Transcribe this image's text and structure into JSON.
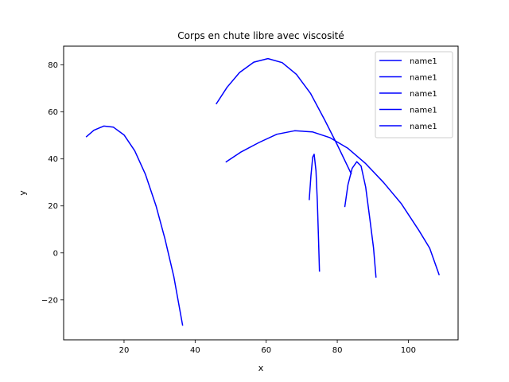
{
  "chart_data": {
    "type": "line",
    "title": "Corps en chute libre avec viscosité",
    "xlabel": "x",
    "ylabel": "y",
    "xlim": [
      3.0,
      114.0
    ],
    "ylim": [
      -37.0,
      88.0
    ],
    "x_ticks": [
      20,
      40,
      60,
      80,
      100
    ],
    "y_ticks": [
      -20,
      0,
      20,
      40,
      60,
      80
    ],
    "x_tick_labels": [
      "20",
      "40",
      "60",
      "80",
      "100"
    ],
    "y_tick_labels": [
      "−20",
      "0",
      "20",
      "40",
      "60",
      "80"
    ],
    "grid": false,
    "legend_position": "top-right",
    "series_color": "#0000ff",
    "series": [
      {
        "name": "name1",
        "points": [
          [
            9.3,
            49.3
          ],
          [
            11.5,
            52.2
          ],
          [
            14.3,
            54.0
          ],
          [
            17.0,
            53.5
          ],
          [
            20.0,
            50.2
          ],
          [
            23.0,
            43.5
          ],
          [
            26.0,
            33.5
          ],
          [
            29.0,
            20.0
          ],
          [
            31.5,
            6.0
          ],
          [
            34.0,
            -10.0
          ],
          [
            36.5,
            -31.0
          ]
        ]
      },
      {
        "name": "name1",
        "points": [
          [
            45.9,
            63.3
          ],
          [
            49.0,
            70.5
          ],
          [
            52.5,
            76.8
          ],
          [
            56.5,
            81.2
          ],
          [
            60.5,
            82.7
          ],
          [
            64.5,
            81.0
          ],
          [
            68.5,
            76.0
          ],
          [
            72.5,
            67.8
          ],
          [
            76.5,
            56.5
          ],
          [
            80.0,
            46.0
          ],
          [
            84.0,
            33.5
          ]
        ]
      },
      {
        "name": "name1",
        "points": [
          [
            48.6,
            38.6
          ],
          [
            53.0,
            43.0
          ],
          [
            58.0,
            47.0
          ],
          [
            63.0,
            50.5
          ],
          [
            68.0,
            52.0
          ],
          [
            73.0,
            51.5
          ],
          [
            78.0,
            49.0
          ],
          [
            83.0,
            44.5
          ],
          [
            88.0,
            38.0
          ],
          [
            93.0,
            30.0
          ],
          [
            98.0,
            21.0
          ],
          [
            103.0,
            9.5
          ],
          [
            106.0,
            2.0
          ],
          [
            108.7,
            -9.5
          ]
        ]
      },
      {
        "name": "name1",
        "points": [
          [
            72.1,
            22.5
          ],
          [
            72.6,
            33.0
          ],
          [
            73.1,
            40.8
          ],
          [
            73.5,
            42.0
          ],
          [
            74.0,
            35.0
          ],
          [
            74.4,
            22.0
          ],
          [
            74.7,
            7.0
          ],
          [
            75.0,
            -8.0
          ]
        ]
      },
      {
        "name": "name1",
        "points": [
          [
            82.1,
            19.5
          ],
          [
            83.0,
            29.0
          ],
          [
            84.2,
            36.0
          ],
          [
            85.5,
            38.8
          ],
          [
            86.7,
            37.0
          ],
          [
            88.0,
            28.0
          ],
          [
            89.2,
            14.0
          ],
          [
            90.2,
            2.0
          ],
          [
            90.9,
            -10.5
          ]
        ]
      }
    ]
  }
}
